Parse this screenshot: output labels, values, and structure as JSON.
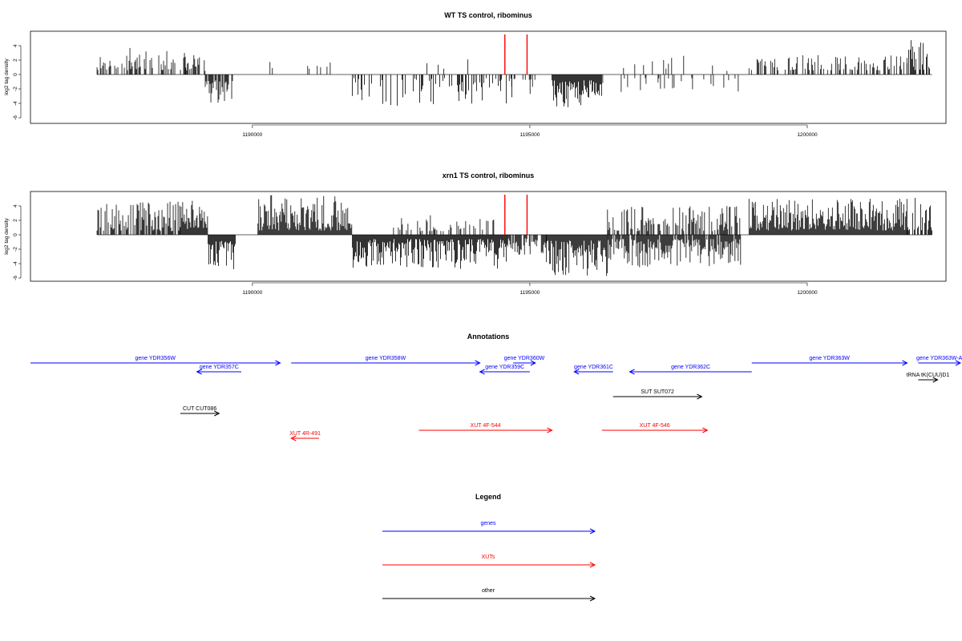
{
  "colors": {
    "genes": "#0000ff",
    "xuts": "#ff0000",
    "other": "#000000",
    "marker": "#ff0000",
    "baseline": "#808080"
  },
  "chart_data": [
    {
      "type": "bar",
      "title": "WT TS control, ribominus",
      "ylabel": "log2 tag density",
      "ylim": [
        -6,
        6
      ],
      "yticks": [
        -6,
        -4,
        -2,
        0,
        2,
        4
      ],
      "xlim": [
        1186000,
        1202500
      ],
      "xticks": [
        1190000,
        1195000,
        1200000
      ],
      "baseline_range": [
        1187200,
        1202250
      ],
      "markers": [
        1194550,
        1194950
      ],
      "grid": false,
      "regions": [
        {
          "start": 1187200,
          "end": 1188800,
          "density": 0.45,
          "seed": 11,
          "min": 0.6,
          "max": 3.7,
          "sign": 1
        },
        {
          "start": 1188800,
          "end": 1189150,
          "density": 0.55,
          "seed": 12,
          "min": 0.5,
          "max": 2.8,
          "sign": 1
        },
        {
          "start": 1189150,
          "end": 1189650,
          "density": 0.8,
          "seed": 13,
          "min": 0.8,
          "max": 4.0,
          "sign": -1
        },
        {
          "start": 1190100,
          "end": 1191200,
          "density": 0.08,
          "seed": 14,
          "min": 0.8,
          "max": 2.0,
          "sign": 1
        },
        {
          "start": 1191200,
          "end": 1191800,
          "density": 0.1,
          "seed": 15,
          "min": 0.8,
          "max": 3.1,
          "sign": 1
        },
        {
          "start": 1191800,
          "end": 1194700,
          "density": 0.3,
          "seed": 16,
          "min": 0.5,
          "max": 4.6,
          "sign": -1
        },
        {
          "start": 1192800,
          "end": 1194000,
          "density": 0.06,
          "seed": 17,
          "min": 0.5,
          "max": 2.1,
          "sign": 1
        },
        {
          "start": 1194600,
          "end": 1195200,
          "density": 0.2,
          "seed": 18,
          "min": 0.5,
          "max": 2.8,
          "sign": -1
        },
        {
          "start": 1195400,
          "end": 1196300,
          "density": 1.0,
          "seed": 19,
          "min": 0.8,
          "max": 4.6,
          "sign": -1
        },
        {
          "start": 1196300,
          "end": 1198800,
          "density": 0.15,
          "seed": 20,
          "min": 0.5,
          "max": 2.5,
          "sign": -1
        },
        {
          "start": 1196400,
          "end": 1198800,
          "density": 0.07,
          "seed": 21,
          "min": 0.5,
          "max": 2.6,
          "sign": 1
        },
        {
          "start": 1198950,
          "end": 1201800,
          "density": 0.35,
          "seed": 22,
          "min": 0.6,
          "max": 2.7,
          "sign": 1
        },
        {
          "start": 1201800,
          "end": 1202250,
          "density": 0.55,
          "seed": 23,
          "min": 0.6,
          "max": 5.5,
          "sign": 1
        }
      ]
    },
    {
      "type": "bar",
      "title": "xrn1 TS control, ribominus",
      "ylabel": "log2 tag density",
      "ylim": [
        -6,
        6
      ],
      "yticks": [
        -6,
        -4,
        -2,
        0,
        2,
        4
      ],
      "xlim": [
        1186000,
        1202500
      ],
      "xticks": [
        1190000,
        1195000,
        1200000
      ],
      "baseline_range": [
        1187200,
        1202250
      ],
      "markers": [
        1194550,
        1194950
      ],
      "grid": false,
      "regions": [
        {
          "start": 1187200,
          "end": 1188700,
          "density": 0.6,
          "seed": 31,
          "min": 0.5,
          "max": 4.6,
          "sign": 1
        },
        {
          "start": 1188700,
          "end": 1189200,
          "density": 1.0,
          "seed": 32,
          "min": 0.8,
          "max": 4.8,
          "sign": 1
        },
        {
          "start": 1189200,
          "end": 1189700,
          "density": 0.9,
          "seed": 33,
          "min": 0.8,
          "max": 4.8,
          "sign": -1
        },
        {
          "start": 1190100,
          "end": 1191800,
          "density": 1.0,
          "seed": 34,
          "min": 0.6,
          "max": 5.5,
          "sign": 1
        },
        {
          "start": 1191800,
          "end": 1194600,
          "density": 1.0,
          "seed": 35,
          "min": 0.6,
          "max": 4.8,
          "sign": -1
        },
        {
          "start": 1192500,
          "end": 1194400,
          "density": 0.25,
          "seed": 36,
          "min": 0.5,
          "max": 2.8,
          "sign": 1
        },
        {
          "start": 1194600,
          "end": 1195300,
          "density": 0.5,
          "seed": 37,
          "min": 0.5,
          "max": 2.8,
          "sign": -1
        },
        {
          "start": 1195300,
          "end": 1196400,
          "density": 1.2,
          "seed": 38,
          "min": 0.8,
          "max": 5.8,
          "sign": -1
        },
        {
          "start": 1196400,
          "end": 1198800,
          "density": 0.9,
          "seed": 39,
          "min": 0.6,
          "max": 4.5,
          "sign": -1
        },
        {
          "start": 1196400,
          "end": 1198800,
          "density": 0.6,
          "seed": 40,
          "min": 0.5,
          "max": 4.0,
          "sign": 1
        },
        {
          "start": 1198950,
          "end": 1201800,
          "density": 1.0,
          "seed": 41,
          "min": 0.6,
          "max": 5.0,
          "sign": 1
        },
        {
          "start": 1201800,
          "end": 1202250,
          "density": 0.8,
          "seed": 42,
          "min": 0.6,
          "max": 5.5,
          "sign": 1
        }
      ]
    }
  ],
  "annotations": {
    "title": "Annotations",
    "items": [
      {
        "label": "gene YDR356W",
        "type": "gene",
        "start": 1186000,
        "end": 1190500,
        "dir": 1,
        "row": 0
      },
      {
        "label": "gene YDR357C",
        "type": "gene",
        "start": 1189000,
        "end": 1189800,
        "dir": -1,
        "row": 1
      },
      {
        "label": "gene YDR358W",
        "type": "gene",
        "start": 1190700,
        "end": 1194100,
        "dir": 1,
        "row": 0
      },
      {
        "label": "gene YDR359C",
        "type": "gene",
        "start": 1194100,
        "end": 1195000,
        "dir": -1,
        "row": 1
      },
      {
        "label": "gene YDR360W",
        "type": "gene",
        "start": 1194700,
        "end": 1195100,
        "dir": 1,
        "row": 0
      },
      {
        "label": "gene YDR361C",
        "type": "gene",
        "start": 1195800,
        "end": 1196500,
        "dir": -1,
        "row": 1
      },
      {
        "label": "gene YDR362C",
        "type": "gene",
        "start": 1196800,
        "end": 1199000,
        "dir": -1,
        "row": 1
      },
      {
        "label": "gene YDR363W",
        "type": "gene",
        "start": 1199000,
        "end": 1201800,
        "dir": 1,
        "row": 0
      },
      {
        "label": "gene YDR363W-A",
        "type": "gene",
        "start": 1202000,
        "end": 1202800,
        "dir": 1,
        "row": 0
      },
      {
        "label": "tRNA tK(CUU)D1",
        "type": "other",
        "start": 1202000,
        "end": 1202350,
        "dir": 1,
        "row": 2
      },
      {
        "label": "SUT SUT072",
        "type": "other",
        "start": 1196500,
        "end": 1198100,
        "dir": 1,
        "row": 3
      },
      {
        "label": "CUT CUT086",
        "type": "other",
        "start": 1188700,
        "end": 1189400,
        "dir": 1,
        "row": 4
      },
      {
        "label": "XUT 4R-491",
        "type": "xut",
        "start": 1190700,
        "end": 1191200,
        "dir": -1,
        "row": 6
      },
      {
        "label": "XUT 4F-544",
        "type": "xut",
        "start": 1193000,
        "end": 1195400,
        "dir": 1,
        "row": 5
      },
      {
        "label": "XUT 4F-546",
        "type": "xut",
        "start": 1196300,
        "end": 1198200,
        "dir": 1,
        "row": 5
      }
    ]
  },
  "legend": {
    "title": "Legend",
    "items": [
      {
        "label": "genes",
        "type": "gene"
      },
      {
        "label": "XUTs",
        "type": "xut"
      },
      {
        "label": "other",
        "type": "other"
      }
    ]
  }
}
